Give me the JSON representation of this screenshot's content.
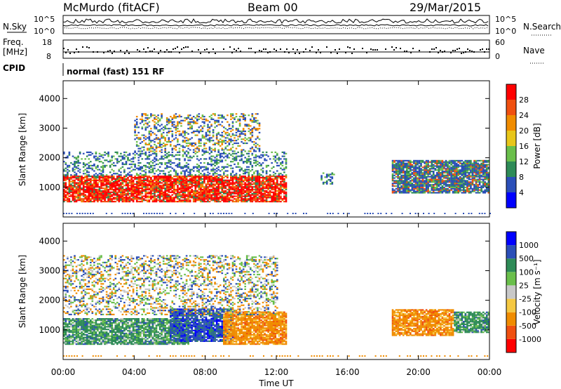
{
  "header": {
    "title": "McMurdo (fitACF)",
    "beam": "Beam 00",
    "date": "29/Mar/2015"
  },
  "top_strips": {
    "nsky_label": "N.Sky",
    "nsky_ticks": [
      "10^5",
      "10^0"
    ],
    "nsearch_label": "N.Search",
    "nsearch_ticks": [
      "10^5",
      "10^0"
    ],
    "freq_label": "Freq.",
    "freq_unit": "[MHz]",
    "freq_ticks": [
      "18",
      "8"
    ],
    "nave_label": "Nave",
    "nave_ticks": [
      "60",
      "0"
    ],
    "cpid_label": "CPID",
    "cpid_value": "normal (fast) 151 RF"
  },
  "colors": {
    "power": [
      "#0000ff",
      "#2b4fb8",
      "#2e8b57",
      "#6abf4b",
      "#e8c61a",
      "#f08c00",
      "#f05010",
      "#ff0000"
    ],
    "velocity": [
      "#ff0000",
      "#f05010",
      "#f08c00",
      "#f5c842",
      "#c8c8c8",
      "#6abf4b",
      "#2e8b57",
      "#2b4fb8",
      "#0000ff"
    ]
  },
  "chart_data": [
    {
      "type": "heatmap",
      "panel": "power",
      "ylabel": "Slant Range [km]",
      "xlabel": "",
      "ylim": [
        0,
        4600
      ],
      "yticks": [
        "4000",
        "3000",
        "2000",
        "1000"
      ],
      "xlim_hours": [
        0,
        24
      ],
      "colorbar_label": "Power [dB]",
      "colorbar_ticks": [
        "28",
        "24",
        "20",
        "16",
        "12",
        "8",
        "4"
      ],
      "regions": [
        {
          "t0": 0.0,
          "t1": 12.5,
          "r0": 500,
          "r1": 1400,
          "level": "strong"
        },
        {
          "t0": 0.0,
          "t1": 12.5,
          "r0": 1400,
          "r1": 2200,
          "level": "weak"
        },
        {
          "t0": 4.0,
          "t1": 11.0,
          "r0": 2200,
          "r1": 3500,
          "level": "sparse"
        },
        {
          "t0": 14.5,
          "t1": 15.2,
          "r0": 1100,
          "r1": 1500,
          "level": "weak"
        },
        {
          "t0": 18.5,
          "t1": 24.0,
          "r0": 800,
          "r1": 1900,
          "level": "moderate"
        }
      ]
    },
    {
      "type": "heatmap",
      "panel": "velocity",
      "ylabel": "Slant Range [km]",
      "xlabel": "Time UT",
      "ylim": [
        0,
        4600
      ],
      "yticks": [
        "4000",
        "3000",
        "2000",
        "1000"
      ],
      "xticks": [
        "00:00",
        "04:00",
        "08:00",
        "12:00",
        "16:00",
        "20:00",
        "00:00"
      ],
      "xlim_hours": [
        0,
        24
      ],
      "colorbar_label": "Velocity [m s⁻¹]",
      "colorbar_ticks": [
        "1000",
        "500",
        "100",
        "25",
        "-25",
        "-100",
        "-500",
        "-1000"
      ],
      "regions": [
        {
          "t0": 0.0,
          "t1": 7.0,
          "r0": 500,
          "r1": 1400,
          "level": "green"
        },
        {
          "t0": 6.0,
          "t1": 9.5,
          "r0": 600,
          "r1": 1700,
          "level": "blue"
        },
        {
          "t0": 9.0,
          "t1": 12.5,
          "r0": 500,
          "r1": 1600,
          "level": "orange"
        },
        {
          "t0": 0.0,
          "t1": 12.0,
          "r0": 1500,
          "r1": 3500,
          "level": "mixed"
        },
        {
          "t0": 18.5,
          "t1": 22.0,
          "r0": 800,
          "r1": 1700,
          "level": "orange"
        },
        {
          "t0": 22.0,
          "t1": 24.0,
          "r0": 900,
          "r1": 1600,
          "level": "green"
        }
      ]
    }
  ]
}
